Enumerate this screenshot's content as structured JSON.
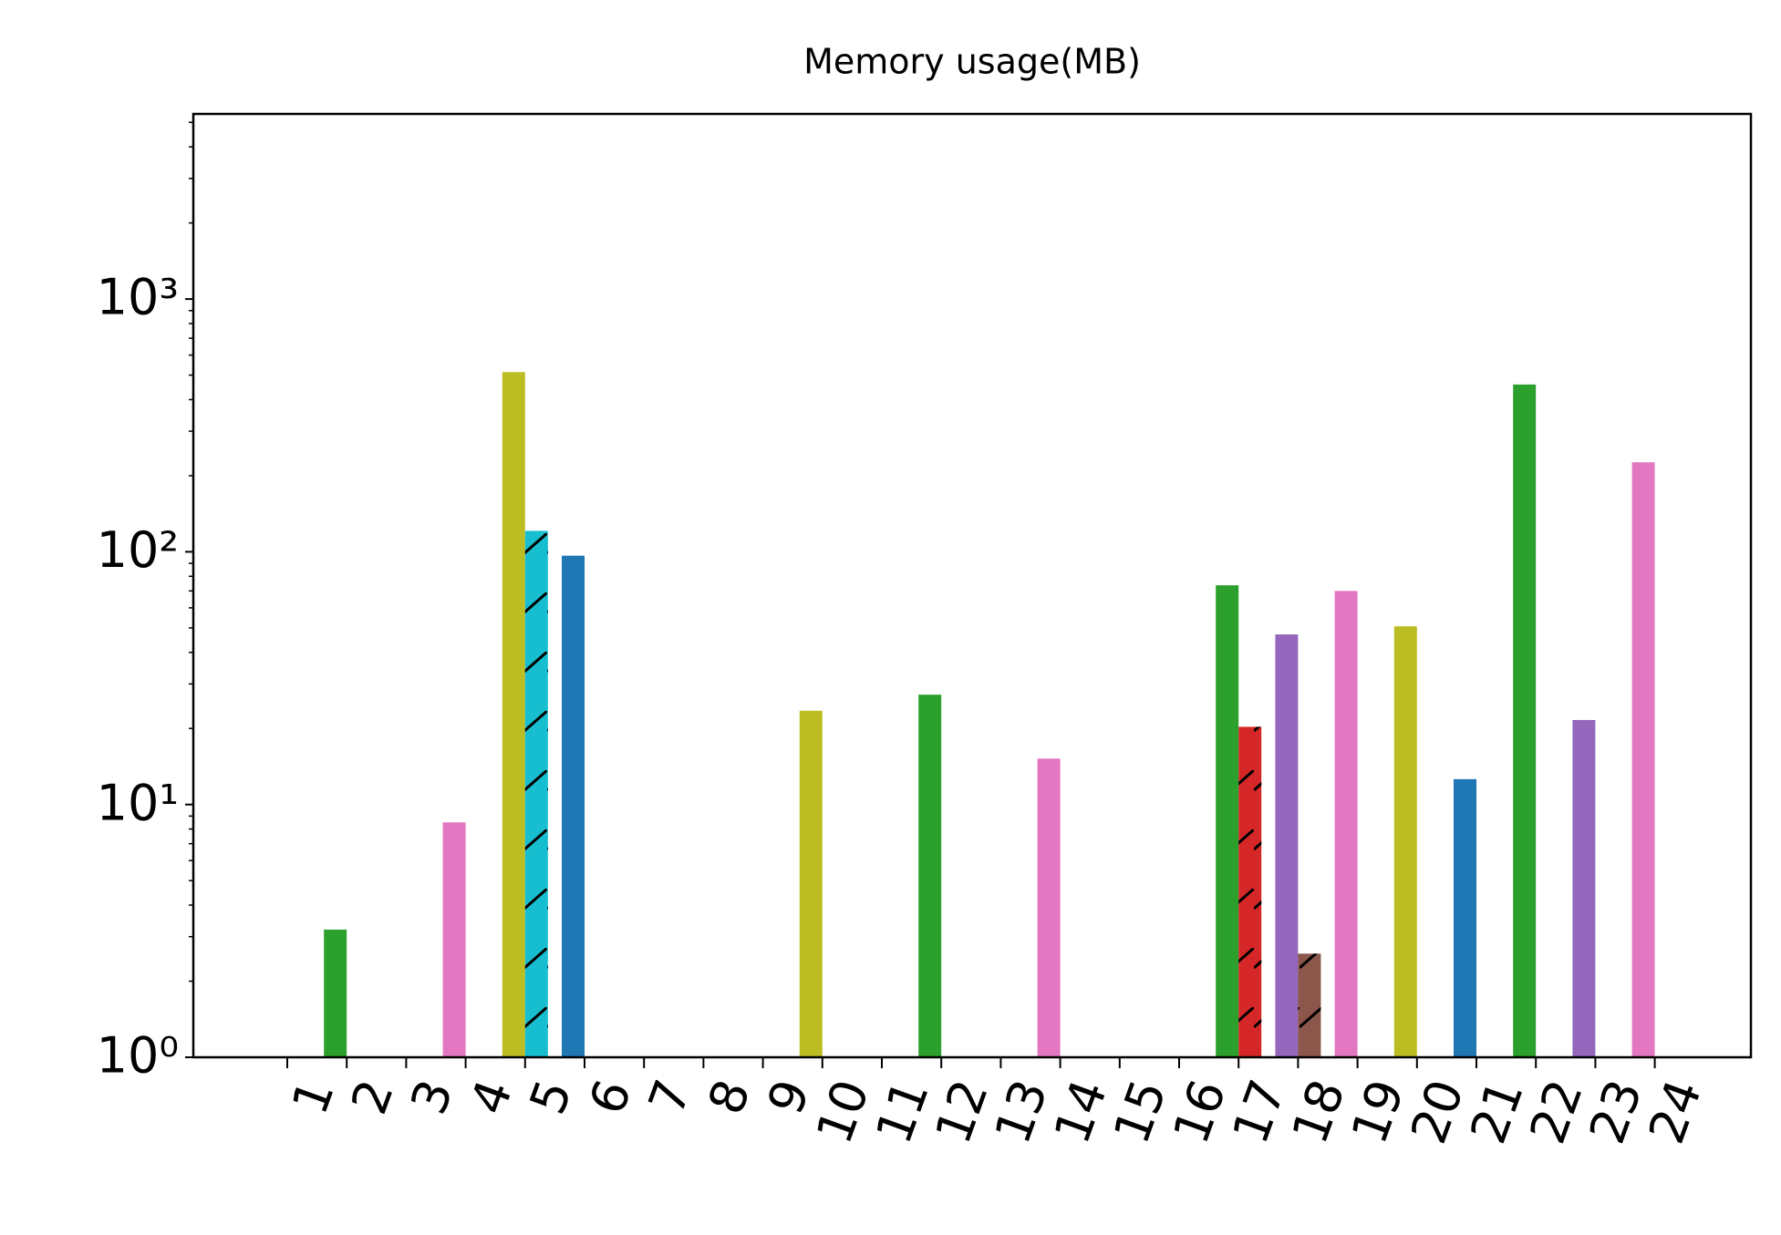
{
  "chart_data": {
    "type": "bar",
    "title": "Memory usage(MB)",
    "categories": [
      "1",
      "2",
      "3",
      "4",
      "5",
      "6",
      "7",
      "8",
      "9",
      "10",
      "11",
      "12",
      "13",
      "14",
      "15",
      "16",
      "17",
      "18",
      "19",
      "20",
      "21",
      "22",
      "23",
      "24"
    ],
    "series": [
      {
        "values": [
          null,
          3.2,
          null,
          8.5,
          514,
          96.5,
          null,
          null,
          null,
          23.5,
          null,
          27.2,
          null,
          15.2,
          null,
          null,
          73.7,
          47.1,
          70,
          50.7,
          12.6,
          459,
          21.6,
          226
        ],
        "colors": [
          null,
          "#2ca02c",
          null,
          "#e377c2",
          "#bcbd22",
          "#1f77b4",
          null,
          null,
          null,
          "#bcbd22",
          null,
          "#2ca02c",
          null,
          "#e377c2",
          null,
          null,
          "#2ca02c",
          "#9467bd",
          "#e377c2",
          "#bcbd22",
          "#1f77b4",
          "#2ca02c",
          "#9467bd",
          "#e377c2"
        ]
      },
      {
        "values": [
          null,
          null,
          null,
          null,
          121,
          null,
          null,
          null,
          null,
          null,
          null,
          null,
          null,
          null,
          null,
          null,
          20.3,
          2.57,
          null,
          null,
          null,
          null,
          null,
          null
        ],
        "colors": [
          null,
          null,
          null,
          null,
          "#17becf",
          null,
          null,
          null,
          null,
          null,
          null,
          null,
          null,
          null,
          null,
          null,
          "#d62728",
          "#8c564b",
          null,
          null,
          null,
          null,
          null,
          null
        ],
        "hatch": "/"
      }
    ],
    "log_scale": true,
    "ylim": [
      1,
      5400
    ],
    "yticks": [
      {
        "value": 1,
        "label": "10⁰"
      },
      {
        "value": 10,
        "label": "10¹"
      },
      {
        "value": 100,
        "label": "10²"
      },
      {
        "value": 1000,
        "label": "10³"
      }
    ],
    "yminorticks": [
      2,
      3,
      4,
      5,
      6,
      7,
      8,
      9,
      20,
      30,
      40,
      50,
      60,
      70,
      80,
      90,
      200,
      300,
      400,
      500,
      600,
      700,
      800,
      900,
      2000,
      3000,
      4000,
      5000
    ]
  }
}
